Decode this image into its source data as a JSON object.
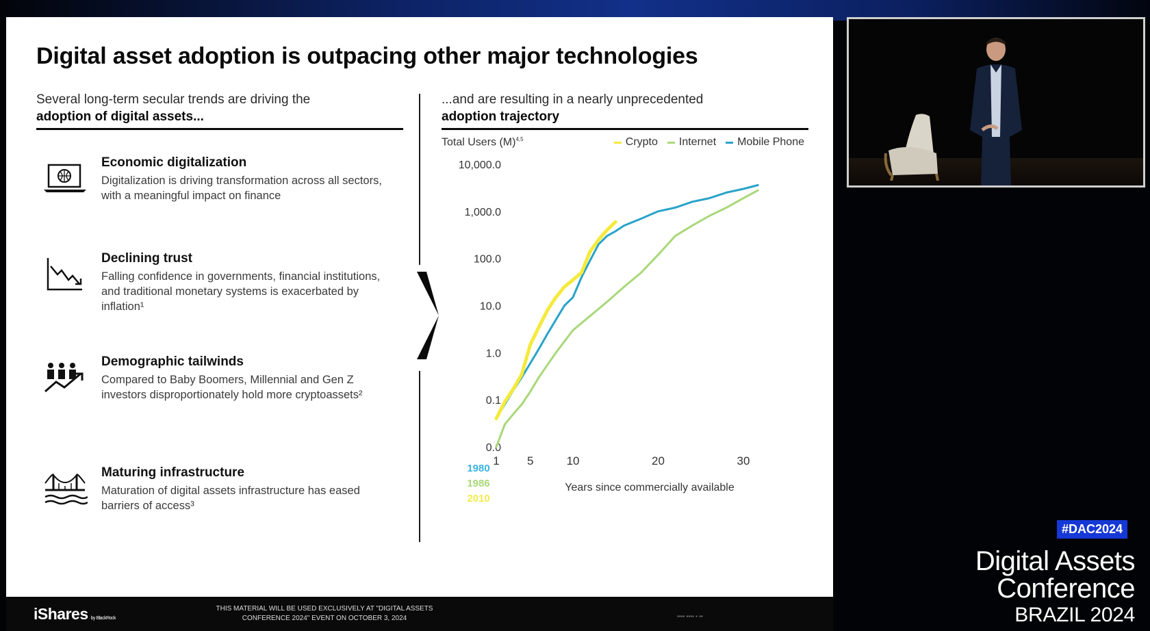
{
  "slide": {
    "title": "Digital asset adoption is outpacing other major technologies",
    "left_heading": "Several long-term secular trends are driving the",
    "left_heading_bold": "adoption of digital assets...",
    "right_heading": "...and are resulting in a nearly unprecedented",
    "right_heading_bold": "adoption trajectory",
    "trends": [
      {
        "title": "Economic digitalization",
        "body": "Digitalization is driving transformation across all sectors, with a meaningful impact on finance",
        "icon": "laptop-globe-icon"
      },
      {
        "title": "Declining trust",
        "body": "Falling confidence in governments, financial institutions, and traditional monetary systems is exacerbated by inflation¹",
        "icon": "declining-chart-icon"
      },
      {
        "title": "Demographic tailwinds",
        "body": "Compared to Baby Boomers, Millennial and Gen Z investors disproportionately hold more cryptoassets²",
        "icon": "people-growth-icon"
      },
      {
        "title": "Maturing infrastructure",
        "body": "Maturation of digital assets infrastructure has eased barriers of access³",
        "icon": "bridge-icon"
      }
    ]
  },
  "chart_data": {
    "type": "line",
    "title": "",
    "ylabel": "Total Users (M)",
    "ylabel_sup": "4,5",
    "xlabel": "Years since commercially available",
    "yscale": "log",
    "ytick_labels": [
      "10,000.0",
      "1,000.0",
      "100.0",
      "10.0",
      "1.0",
      "0.1",
      "0.0"
    ],
    "ytick_values": [
      10000,
      1000,
      100,
      10,
      1,
      0.1,
      0.01
    ],
    "xtick_values": [
      1,
      5,
      10,
      20,
      30
    ],
    "xlim": [
      1,
      32
    ],
    "ylim": [
      0.01,
      10000
    ],
    "legend_position": "top-right",
    "start_years": [
      "1980",
      "1986",
      "2010"
    ],
    "start_year_colors": [
      "#39b4e0",
      "#a8d878",
      "#f5ea4a"
    ],
    "series": [
      {
        "name": "Crypto",
        "color": "#f5ea3c",
        "x": [
          1,
          2,
          3,
          4,
          5,
          6,
          7,
          8,
          9,
          10,
          11,
          12,
          13,
          14,
          15
        ],
        "y": [
          0.04,
          0.09,
          0.17,
          0.35,
          1.5,
          3.5,
          8,
          15,
          25,
          35,
          50,
          140,
          250,
          400,
          600
        ]
      },
      {
        "name": "Internet",
        "color": "#a8d878",
        "x": [
          1,
          2,
          3,
          4,
          5,
          6,
          8,
          10,
          12,
          14,
          16,
          18,
          20,
          22,
          24,
          26,
          28,
          30,
          32
        ],
        "y": [
          0.01,
          0.03,
          0.05,
          0.08,
          0.15,
          0.3,
          1,
          3,
          6,
          12,
          25,
          50,
          120,
          300,
          500,
          800,
          1200,
          1900,
          2800
        ]
      },
      {
        "name": "Mobile Phone",
        "color": "#29a3c9",
        "x": [
          1,
          2,
          3,
          4,
          5,
          6,
          7,
          8,
          9,
          10,
          11,
          12,
          13,
          14,
          15,
          16,
          18,
          20,
          22,
          24,
          26,
          28,
          30,
          32
        ],
        "y": [
          0.04,
          0.08,
          0.16,
          0.3,
          0.6,
          1.2,
          2.5,
          5,
          10,
          15,
          40,
          90,
          200,
          300,
          380,
          500,
          700,
          1000,
          1200,
          1600,
          1900,
          2500,
          3000,
          3600
        ]
      }
    ]
  },
  "footer": {
    "brand": "iShares",
    "brand_sub": "by BlackRock",
    "disclaimer": "THIS MATERIAL WILL BE USED EXCLUSIVELY AT \"DIGITAL ASSETS CONFERENCE 2024\" EVENT ON OCTOBER 3, 2024"
  },
  "event": {
    "hashtag": "#DAC2024",
    "title_line1": "Digital Assets",
    "title_line2": "Conference",
    "subtitle": "BRAZIL 2024"
  },
  "colors": {
    "hashtag_bg": "#1638d6",
    "background": "#020306"
  }
}
